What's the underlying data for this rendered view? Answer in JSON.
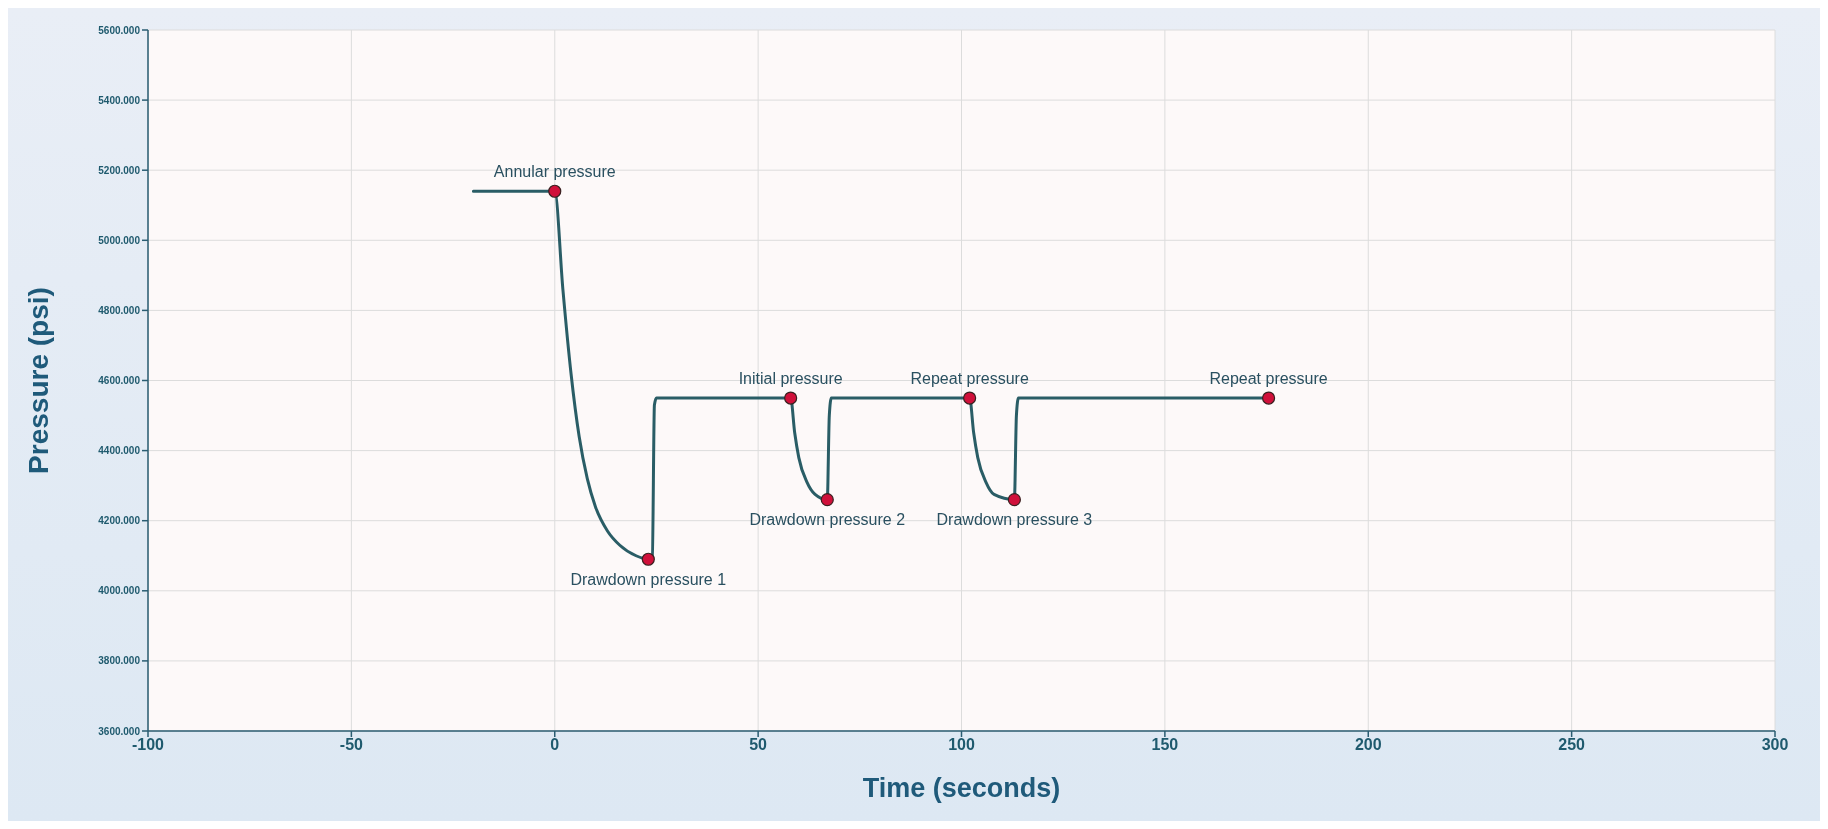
{
  "chart_data": {
    "type": "line",
    "xlabel": "Time (seconds)",
    "ylabel": "Pressure (psi)",
    "xlim": [
      -100,
      300
    ],
    "xticks": [
      -100,
      -50,
      0,
      50,
      100,
      150,
      200,
      250,
      300
    ],
    "ylim": [
      3600,
      5600
    ],
    "yticks": [
      {
        "value": 3600,
        "label": "3600.000"
      },
      {
        "value": 3800,
        "label": "3800.000"
      },
      {
        "value": 4000,
        "label": "4000.000"
      },
      {
        "value": 4200,
        "label": "4200.000"
      },
      {
        "value": 4400,
        "label": "4400.000"
      },
      {
        "value": 4600,
        "label": "4600.000"
      },
      {
        "value": 4800,
        "label": "4800.000"
      },
      {
        "value": 5000,
        "label": "5000.000"
      },
      {
        "value": 5200,
        "label": "5200.000"
      },
      {
        "value": 5400,
        "label": "5400.000"
      },
      {
        "value": 5600,
        "label": "5600.000"
      }
    ],
    "grid": true,
    "series": [
      {
        "color": "#2a5d66",
        "marker": "none",
        "x": [
          -20,
          0,
          2,
          4,
          6,
          8,
          10,
          13,
          16,
          20,
          23,
          24,
          24.5,
          25,
          58,
          59,
          60,
          62,
          64,
          67,
          67.5,
          68,
          102,
          103,
          104,
          106,
          108,
          113,
          113.5,
          114,
          175.5
        ],
        "values": [
          5140,
          5140,
          4860,
          4620,
          4440,
          4320,
          4240,
          4170,
          4130,
          4100,
          4090,
          4100,
          4530,
          4550,
          4550,
          4450,
          4380,
          4310,
          4275,
          4260,
          4500,
          4550,
          4550,
          4450,
          4380,
          4310,
          4275,
          4260,
          4500,
          4550,
          4550
        ]
      },
      {
        "type": "scatter",
        "color": "#d0103a",
        "marker": "circle",
        "x": [
          0,
          23,
          58,
          67,
          102,
          113,
          175.5
        ],
        "values": [
          5140,
          4090,
          4550,
          4260,
          4550,
          4260,
          4550
        ]
      }
    ],
    "annotations": [
      {
        "text": "Annular pressure",
        "x": 0,
        "y": 5140
      },
      {
        "text": "Drawdown pressure 1",
        "x": 23,
        "y": 4090
      },
      {
        "text": "Initial pressure",
        "x": 58,
        "y": 4550
      },
      {
        "text": "Drawdown pressure 2",
        "x": 67,
        "y": 4260
      },
      {
        "text": "Repeat pressure",
        "x": 102,
        "y": 4550
      },
      {
        "text": "Drawdown pressure 3",
        "x": 113,
        "y": 4260
      },
      {
        "text": "Repeat pressure",
        "x": 175.5,
        "y": 4550
      }
    ]
  }
}
